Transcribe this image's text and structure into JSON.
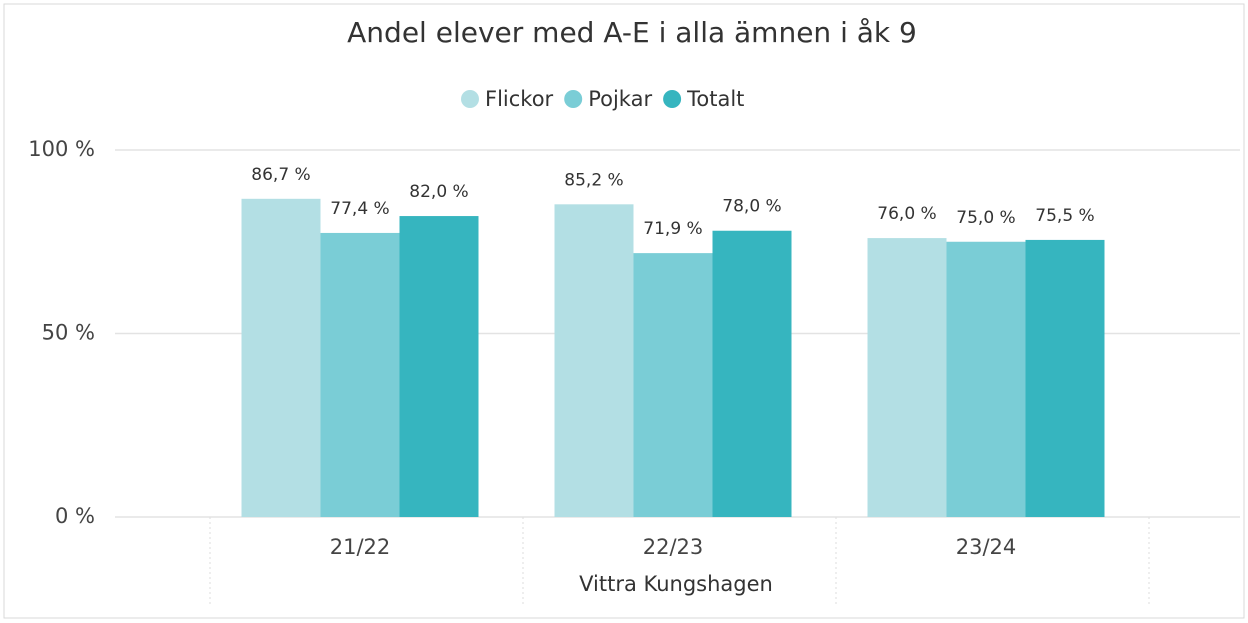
{
  "chart_data": {
    "type": "bar",
    "title": "Andel elever med A-E i alla ämnen i åk 9",
    "x_label": "Vittra Kungshagen",
    "categories": [
      "21/22",
      "22/23",
      "23/24"
    ],
    "series": [
      {
        "name": "Flickor",
        "color": "#b3dfe4",
        "values": [
          86.7,
          85.2,
          76.0
        ],
        "value_labels": [
          "86,7 %",
          "85,2 %",
          "76,0 %"
        ]
      },
      {
        "name": "Pojkar",
        "color": "#7acdd6",
        "values": [
          77.4,
          71.9,
          75.0
        ],
        "value_labels": [
          "77,4 %",
          "71,9 %",
          "75,0 %"
        ]
      },
      {
        "name": "Totalt",
        "color": "#36b5bf",
        "values": [
          82.0,
          78.0,
          75.5
        ],
        "value_labels": [
          "82,0 %",
          "78,0 %",
          "75,5 %"
        ]
      }
    ],
    "ylim": [
      0,
      100
    ],
    "yticks": [
      {
        "value": 0,
        "label": "0 %"
      },
      {
        "value": 50,
        "label": "50 %"
      },
      {
        "value": 100,
        "label": "100 %"
      }
    ],
    "grid": true,
    "legend": "top"
  }
}
